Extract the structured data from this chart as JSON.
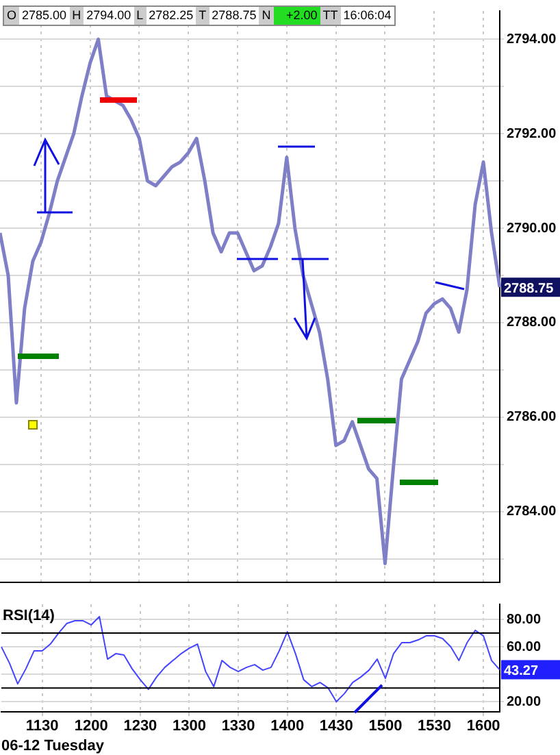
{
  "chart_data": [
    {
      "type": "line",
      "categories": [
        null,
        null,
        null,
        null,
        null,
        "1130",
        null,
        null,
        null,
        null,
        null,
        "1200",
        null,
        null,
        null,
        null,
        null,
        "1230",
        null,
        null,
        null,
        null,
        null,
        "1300",
        null,
        null,
        null,
        null,
        null,
        "1330",
        null,
        null,
        null,
        null,
        null,
        "1400",
        null,
        null,
        null,
        null,
        null,
        "1430",
        null,
        null,
        null,
        null,
        null,
        "1500",
        null,
        null,
        null,
        null,
        null,
        "1530",
        null,
        null,
        null,
        null,
        null,
        "1600",
        null,
        null
      ],
      "series": [
        {
          "color": "#7f7fc8",
          "values": [
            2789.9,
            2789.0,
            2786.3,
            2788.3,
            2789.3,
            2789.7,
            2790.3,
            2791.0,
            2791.5,
            2792.0,
            2792.8,
            2793.5,
            2794.0,
            2792.8,
            2792.7,
            2792.6,
            2792.3,
            2791.9,
            2791.0,
            2790.9,
            2791.1,
            2791.3,
            2791.4,
            2791.6,
            2791.9,
            2791.0,
            2789.9,
            2789.5,
            2789.9,
            2789.9,
            2789.5,
            2789.1,
            2789.2,
            2789.6,
            2790.1,
            2791.5,
            2790.0,
            2789.0,
            2788.4,
            2787.8,
            2786.8,
            2785.4,
            2785.5,
            2785.9,
            2785.4,
            2784.9,
            2784.7,
            2782.9,
            2784.9,
            2786.8,
            2787.2,
            2787.6,
            2788.2,
            2788.4,
            2788.5,
            2788.3,
            2787.8,
            2788.7,
            2790.5,
            2791.4,
            2789.9,
            2788.75
          ]
        }
      ],
      "ylim": [
        2782.5,
        2794.6
      ],
      "yticks": [
        {
          "value": 2783,
          "label": null
        },
        {
          "value": 2784,
          "label": "2784.00"
        },
        {
          "value": 2785,
          "label": null
        },
        {
          "value": 2786,
          "label": "2786.00"
        },
        {
          "value": 2787,
          "label": null
        },
        {
          "value": 2788,
          "label": "2788.00"
        },
        {
          "value": 2789,
          "label": null
        },
        {
          "value": 2790,
          "label": "2790.00"
        },
        {
          "value": 2791,
          "label": null
        },
        {
          "value": 2792,
          "label": "2792.00"
        },
        {
          "value": 2793,
          "label": null
        },
        {
          "value": 2794,
          "label": "2794.00"
        }
      ],
      "tick_labels": "y",
      "grid": true,
      "legend": false,
      "marker": "none",
      "annotations": [
        "O",
        "2785.00",
        "H",
        "2794.00",
        "L",
        "2782.25",
        "T",
        "2788.75",
        "N",
        "+2.00",
        "TT",
        "16:06:04",
        "2788.75"
      ]
    },
    {
      "type": "line",
      "title": "RSI(14)",
      "xlabel": "06-12 Tuesday",
      "categories": [
        null,
        null,
        null,
        null,
        null,
        "1130",
        null,
        null,
        null,
        null,
        null,
        "1200",
        null,
        null,
        null,
        null,
        null,
        "1230",
        null,
        null,
        null,
        null,
        null,
        "1300",
        null,
        null,
        null,
        null,
        null,
        "1330",
        null,
        null,
        null,
        null,
        null,
        "1400",
        null,
        null,
        null,
        null,
        null,
        "1430",
        null,
        null,
        null,
        null,
        null,
        "1500",
        null,
        null,
        null,
        null,
        null,
        "1530",
        null,
        null,
        null,
        null,
        null,
        "1600",
        null,
        null
      ],
      "series": [
        {
          "color": "#4444ff",
          "values": [
            60,
            48,
            33,
            44,
            57,
            57,
            62,
            70,
            77,
            79,
            79,
            76,
            82,
            51,
            55,
            54,
            44,
            36,
            29,
            38,
            45,
            50,
            55,
            59,
            62,
            42,
            31,
            50,
            45,
            42,
            45,
            47,
            43,
            45,
            57,
            71,
            55,
            36,
            31,
            34,
            30,
            20,
            26,
            34,
            38,
            43,
            51,
            37,
            55,
            63,
            63,
            65,
            68,
            68,
            66,
            60,
            50,
            63,
            72,
            68,
            50,
            43.27
          ]
        }
      ],
      "ylim": [
        12.5,
        91
      ],
      "yticks": [
        {
          "value": 20,
          "label": "20.00"
        },
        {
          "value": 40,
          "label": null
        },
        {
          "value": 60,
          "label": "60.00"
        },
        {
          "value": 80,
          "label": "80.00"
        }
      ],
      "ref_lines": [
        {
          "axis": "y",
          "value": 70,
          "color": "#000000"
        },
        {
          "axis": "y",
          "value": 30,
          "color": "#000000"
        }
      ],
      "grid": true,
      "legend": false,
      "marker": "none",
      "annotations": [
        "43.27"
      ]
    }
  ]
}
